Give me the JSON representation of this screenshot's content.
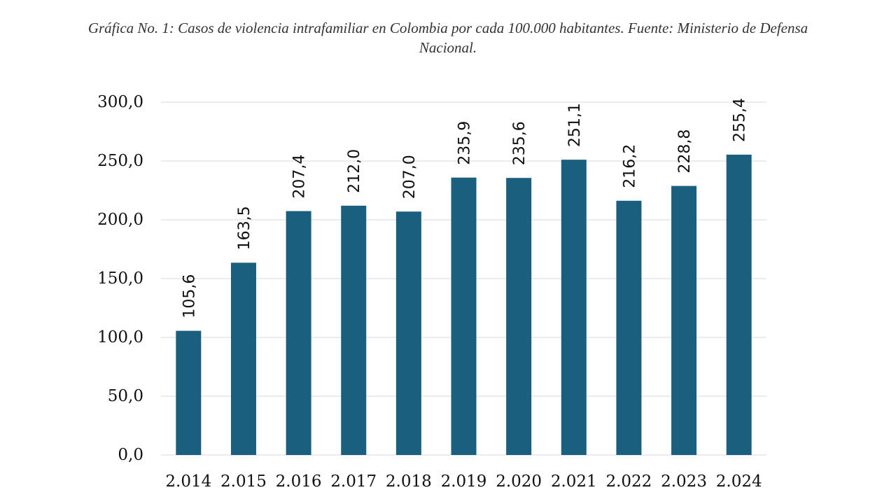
{
  "caption": {
    "line1": "Gráfica No. 1: Casos de violencia intrafamiliar en Colombia por cada 100.000 habitantes. Fuente: Ministerio de Defensa",
    "line2": "Nacional."
  },
  "chart_data": {
    "type": "bar",
    "categories": [
      "2.014",
      "2.015",
      "2.016",
      "2.017",
      "2.018",
      "2.019",
      "2.020",
      "2.021",
      "2.022",
      "2.023",
      "2.024"
    ],
    "values": [
      105.6,
      163.5,
      207.4,
      212.0,
      207.0,
      235.9,
      235.6,
      251.1,
      216.2,
      228.8,
      255.4
    ],
    "value_labels": [
      "105,6",
      "163,5",
      "207,4",
      "212,0",
      "207,0",
      "235,9",
      "235,6",
      "251,1",
      "216,2",
      "228,8",
      "255,4"
    ],
    "ylim": [
      0,
      300
    ],
    "yticks": [
      0,
      50,
      100,
      150,
      200,
      250,
      300
    ],
    "ytick_labels": [
      "0,0",
      "50,0",
      "100,0",
      "150,0",
      "200,0",
      "250,0",
      "300,0"
    ],
    "grid": true,
    "legend": "none",
    "bar_color": "#1a5f7d",
    "grid_color": "#d9d9d9"
  }
}
